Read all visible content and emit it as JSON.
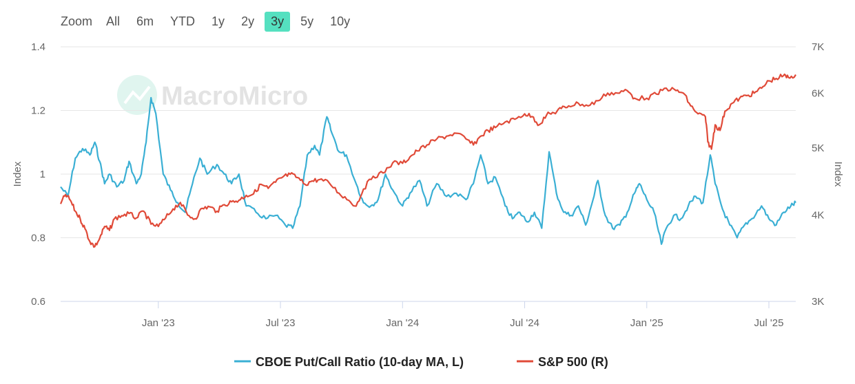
{
  "zoom": {
    "label": "Zoom",
    "buttons": [
      "All",
      "6m",
      "YTD",
      "1y",
      "2y",
      "3y",
      "5y",
      "10y"
    ],
    "active": "3y"
  },
  "watermark": "MacroMicro",
  "colors": {
    "put_call": "#3aafd4",
    "sp500": "#e04a38",
    "active_zoom": "#55e0c0"
  },
  "chart_data": {
    "type": "line",
    "title": "",
    "x_ticks": [
      {
        "label": "Jan '23",
        "t": 2023.0
      },
      {
        "label": "Jul '23",
        "t": 2023.5
      },
      {
        "label": "Jan '24",
        "t": 2024.0
      },
      {
        "label": "Jul '24",
        "t": 2024.5
      },
      {
        "label": "Jan '25",
        "t": 2025.0
      },
      {
        "label": "Jul '25",
        "t": 2025.5
      }
    ],
    "x_range": [
      2022.6,
      2025.61
    ],
    "left_axis": {
      "title": "Index",
      "range": [
        0.6,
        1.4
      ],
      "ticks": [
        "1.4",
        "1.2",
        "1",
        "0.8",
        "0.6"
      ]
    },
    "right_axis": {
      "title": "Index",
      "scale": "log",
      "range": [
        3000,
        7000
      ],
      "ticks": [
        {
          "label": "7K",
          "v": 7000
        },
        {
          "label": "6K",
          "v": 6000
        },
        {
          "label": "5K",
          "v": 5000
        },
        {
          "label": "4K",
          "v": 4000
        },
        {
          "label": "3K",
          "v": 3000
        }
      ]
    },
    "series": [
      {
        "name": "CBOE Put/Call Ratio (10-day MA, L)",
        "axis": "left",
        "points": [
          [
            2022.6,
            0.96
          ],
          [
            2022.63,
            0.93
          ],
          [
            2022.66,
            1.05
          ],
          [
            2022.69,
            1.08
          ],
          [
            2022.72,
            1.06
          ],
          [
            2022.74,
            1.1
          ],
          [
            2022.76,
            1.04
          ],
          [
            2022.78,
            0.97
          ],
          [
            2022.8,
            1.0
          ],
          [
            2022.83,
            0.96
          ],
          [
            2022.86,
            0.98
          ],
          [
            2022.88,
            1.04
          ],
          [
            2022.91,
            0.97
          ],
          [
            2022.93,
            1.0
          ],
          [
            2022.95,
            1.1
          ],
          [
            2022.97,
            1.24
          ],
          [
            2022.99,
            1.19
          ],
          [
            2023.02,
            1.0
          ],
          [
            2023.05,
            0.95
          ],
          [
            2023.08,
            0.91
          ],
          [
            2023.11,
            0.88
          ],
          [
            2023.14,
            0.97
          ],
          [
            2023.17,
            1.05
          ],
          [
            2023.2,
            1.0
          ],
          [
            2023.24,
            1.03
          ],
          [
            2023.27,
            1.0
          ],
          [
            2023.3,
            0.97
          ],
          [
            2023.33,
            1.0
          ],
          [
            2023.36,
            0.9
          ],
          [
            2023.4,
            0.88
          ],
          [
            2023.44,
            0.86
          ],
          [
            2023.48,
            0.87
          ],
          [
            2023.52,
            0.84
          ],
          [
            2023.55,
            0.83
          ],
          [
            2023.58,
            0.9
          ],
          [
            2023.61,
            1.06
          ],
          [
            2023.64,
            1.09
          ],
          [
            2023.66,
            1.06
          ],
          [
            2023.69,
            1.18
          ],
          [
            2023.71,
            1.13
          ],
          [
            2023.74,
            1.07
          ],
          [
            2023.77,
            1.06
          ],
          [
            2023.81,
            0.97
          ],
          [
            2023.84,
            0.91
          ],
          [
            2023.87,
            0.9
          ],
          [
            2023.9,
            0.92
          ],
          [
            2023.93,
            1.0
          ],
          [
            2023.96,
            0.95
          ],
          [
            2024.0,
            0.9
          ],
          [
            2024.03,
            0.94
          ],
          [
            2024.07,
            0.98
          ],
          [
            2024.1,
            0.9
          ],
          [
            2024.14,
            0.97
          ],
          [
            2024.18,
            0.93
          ],
          [
            2024.22,
            0.94
          ],
          [
            2024.26,
            0.92
          ],
          [
            2024.29,
            0.97
          ],
          [
            2024.32,
            1.06
          ],
          [
            2024.35,
            0.97
          ],
          [
            2024.38,
            0.99
          ],
          [
            2024.42,
            0.9
          ],
          [
            2024.45,
            0.86
          ],
          [
            2024.48,
            0.88
          ],
          [
            2024.51,
            0.85
          ],
          [
            2024.54,
            0.88
          ],
          [
            2024.57,
            0.83
          ],
          [
            2024.6,
            1.07
          ],
          [
            2024.63,
            0.94
          ],
          [
            2024.66,
            0.88
          ],
          [
            2024.69,
            0.87
          ],
          [
            2024.72,
            0.9
          ],
          [
            2024.75,
            0.84
          ],
          [
            2024.78,
            0.92
          ],
          [
            2024.8,
            0.98
          ],
          [
            2024.83,
            0.87
          ],
          [
            2024.86,
            0.83
          ],
          [
            2024.89,
            0.84
          ],
          [
            2024.92,
            0.88
          ],
          [
            2024.95,
            0.94
          ],
          [
            2024.97,
            0.97
          ],
          [
            2025.0,
            0.92
          ],
          [
            2025.03,
            0.88
          ],
          [
            2025.06,
            0.78
          ],
          [
            2025.08,
            0.83
          ],
          [
            2025.11,
            0.87
          ],
          [
            2025.14,
            0.86
          ],
          [
            2025.17,
            0.9
          ],
          [
            2025.2,
            0.93
          ],
          [
            2025.23,
            0.91
          ],
          [
            2025.26,
            1.06
          ],
          [
            2025.28,
            0.97
          ],
          [
            2025.31,
            0.89
          ],
          [
            2025.34,
            0.84
          ],
          [
            2025.37,
            0.8
          ],
          [
            2025.4,
            0.84
          ],
          [
            2025.43,
            0.86
          ],
          [
            2025.47,
            0.9
          ],
          [
            2025.5,
            0.86
          ],
          [
            2025.53,
            0.84
          ],
          [
            2025.56,
            0.88
          ],
          [
            2025.59,
            0.9
          ],
          [
            2025.61,
            0.91
          ]
        ]
      },
      {
        "name": "S&P 500 (R)",
        "axis": "right",
        "points": [
          [
            2022.6,
            4150
          ],
          [
            2022.62,
            4280
          ],
          [
            2022.64,
            4200
          ],
          [
            2022.66,
            4050
          ],
          [
            2022.68,
            3950
          ],
          [
            2022.7,
            3820
          ],
          [
            2022.72,
            3660
          ],
          [
            2022.74,
            3600
          ],
          [
            2022.76,
            3700
          ],
          [
            2022.78,
            3850
          ],
          [
            2022.8,
            3800
          ],
          [
            2022.82,
            3950
          ],
          [
            2022.85,
            3990
          ],
          [
            2022.88,
            4020
          ],
          [
            2022.91,
            3960
          ],
          [
            2022.94,
            4050
          ],
          [
            2022.97,
            3880
          ],
          [
            2023.0,
            3850
          ],
          [
            2023.03,
            3960
          ],
          [
            2023.06,
            4080
          ],
          [
            2023.09,
            4170
          ],
          [
            2023.12,
            4000
          ],
          [
            2023.15,
            3950
          ],
          [
            2023.18,
            4090
          ],
          [
            2023.21,
            4110
          ],
          [
            2023.24,
            4050
          ],
          [
            2023.27,
            4140
          ],
          [
            2023.3,
            4180
          ],
          [
            2023.33,
            4200
          ],
          [
            2023.36,
            4270
          ],
          [
            2023.39,
            4290
          ],
          [
            2023.42,
            4430
          ],
          [
            2023.45,
            4370
          ],
          [
            2023.48,
            4460
          ],
          [
            2023.51,
            4540
          ],
          [
            2023.54,
            4580
          ],
          [
            2023.57,
            4530
          ],
          [
            2023.6,
            4430
          ],
          [
            2023.63,
            4480
          ],
          [
            2023.66,
            4500
          ],
          [
            2023.7,
            4450
          ],
          [
            2023.74,
            4300
          ],
          [
            2023.78,
            4200
          ],
          [
            2023.81,
            4120
          ],
          [
            2023.84,
            4360
          ],
          [
            2023.88,
            4550
          ],
          [
            2023.92,
            4600
          ],
          [
            2023.96,
            4760
          ],
          [
            2024.0,
            4750
          ],
          [
            2024.03,
            4850
          ],
          [
            2024.06,
            4950
          ],
          [
            2024.1,
            5050
          ],
          [
            2024.14,
            5150
          ],
          [
            2024.18,
            5200
          ],
          [
            2024.22,
            5250
          ],
          [
            2024.26,
            5150
          ],
          [
            2024.29,
            5050
          ],
          [
            2024.32,
            5200
          ],
          [
            2024.35,
            5300
          ],
          [
            2024.38,
            5350
          ],
          [
            2024.42,
            5450
          ],
          [
            2024.46,
            5500
          ],
          [
            2024.5,
            5600
          ],
          [
            2024.53,
            5550
          ],
          [
            2024.56,
            5400
          ],
          [
            2024.59,
            5580
          ],
          [
            2024.62,
            5620
          ],
          [
            2024.65,
            5700
          ],
          [
            2024.68,
            5750
          ],
          [
            2024.72,
            5800
          ],
          [
            2024.76,
            5750
          ],
          [
            2024.8,
            5850
          ],
          [
            2024.84,
            6000
          ],
          [
            2024.88,
            6000
          ],
          [
            2024.92,
            6050
          ],
          [
            2024.95,
            5900
          ],
          [
            2025.0,
            5900
          ],
          [
            2025.04,
            5980
          ],
          [
            2025.08,
            6100
          ],
          [
            2025.12,
            6050
          ],
          [
            2025.15,
            6000
          ],
          [
            2025.18,
            5750
          ],
          [
            2025.21,
            5600
          ],
          [
            2025.24,
            5550
          ],
          [
            2025.25,
            5100
          ],
          [
            2025.265,
            4980
          ],
          [
            2025.28,
            5400
          ],
          [
            2025.3,
            5300
          ],
          [
            2025.32,
            5650
          ],
          [
            2025.35,
            5800
          ],
          [
            2025.38,
            5900
          ],
          [
            2025.41,
            5950
          ],
          [
            2025.44,
            6000
          ],
          [
            2025.47,
            6100
          ],
          [
            2025.5,
            6250
          ],
          [
            2025.53,
            6300
          ],
          [
            2025.56,
            6360
          ],
          [
            2025.58,
            6320
          ],
          [
            2025.61,
            6380
          ]
        ]
      }
    ]
  }
}
